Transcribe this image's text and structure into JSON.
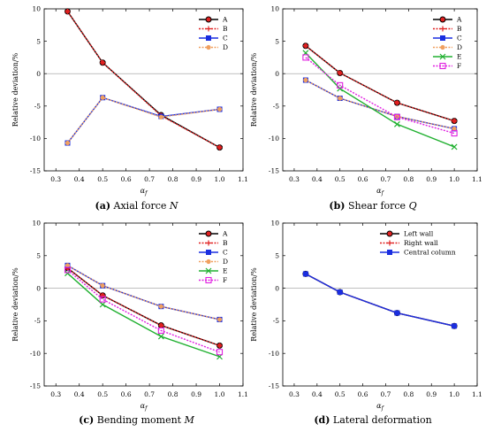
{
  "figure": {
    "panels": [
      {
        "caption_letter": "(a)",
        "caption_text": "Axial force ",
        "caption_symbol": "N"
      },
      {
        "caption_letter": "(b)",
        "caption_text": "Shear force ",
        "caption_symbol": "Q"
      },
      {
        "caption_letter": "(c)",
        "caption_text": "Bending moment ",
        "caption_symbol": "M"
      },
      {
        "caption_letter": "(d)",
        "caption_text": "Lateral deformation",
        "caption_symbol": ""
      }
    ]
  },
  "chart_data": [
    {
      "type": "line",
      "ylabel": "Relative deviation/%",
      "xlabel": "α_f",
      "xlim": [
        0.25,
        1.1
      ],
      "ylim": [
        -15,
        10
      ],
      "xticks": [
        "0.3",
        "0.4",
        "0.5",
        "0.6",
        "0.7",
        "0.8",
        "0.9",
        "1.0",
        "1.1"
      ],
      "yticks": [
        "-15",
        "-10",
        "-5",
        "0",
        "5",
        "10"
      ],
      "grid": false,
      "legend": "top-right",
      "x": [
        0.35,
        0.5,
        0.75,
        1.0
      ],
      "series": [
        {
          "name": "A",
          "color": "#000000",
          "dash": "solid",
          "marker": "circle",
          "values": [
            9.6,
            1.7,
            -6.4,
            -11.4
          ]
        },
        {
          "name": "B",
          "color": "#e02020",
          "dash": "dotted",
          "marker": "plus",
          "values": [
            9.6,
            1.7,
            -6.5,
            -11.4
          ]
        },
        {
          "name": "C",
          "color": "#1a2ee0",
          "dash": "solid",
          "marker": "xsquare",
          "values": [
            -10.7,
            -3.7,
            -6.6,
            -5.5
          ]
        },
        {
          "name": "D",
          "color": "#f0a060",
          "dash": "dotted",
          "marker": "dot",
          "values": [
            -10.7,
            -3.7,
            -6.7,
            -5.5
          ]
        }
      ]
    },
    {
      "type": "line",
      "ylabel": "Relative deviation/%",
      "xlabel": "α_f",
      "xlim": [
        0.25,
        1.1
      ],
      "ylim": [
        -15,
        10
      ],
      "xticks": [
        "0.3",
        "0.4",
        "0.5",
        "0.6",
        "0.7",
        "0.8",
        "0.9",
        "1.0",
        "1.1"
      ],
      "yticks": [
        "-15",
        "-10",
        "-5",
        "0",
        "5",
        "10"
      ],
      "grid": false,
      "legend": "top-right",
      "x": [
        0.35,
        0.5,
        0.75,
        1.0
      ],
      "series": [
        {
          "name": "A",
          "color": "#000000",
          "dash": "solid",
          "marker": "circle",
          "values": [
            4.3,
            0.1,
            -4.5,
            -7.3
          ]
        },
        {
          "name": "B",
          "color": "#e02020",
          "dash": "dotted",
          "marker": "plus",
          "values": [
            4.3,
            0.1,
            -4.5,
            -7.3
          ]
        },
        {
          "name": "C",
          "color": "#1a2ee0",
          "dash": "solid",
          "marker": "xsquare",
          "values": [
            -1.0,
            -3.8,
            -6.6,
            -8.5
          ]
        },
        {
          "name": "D",
          "color": "#f0a060",
          "dash": "dotted",
          "marker": "dot",
          "values": [
            -1.0,
            -3.8,
            -6.6,
            -8.5
          ]
        },
        {
          "name": "E",
          "color": "#20b030",
          "dash": "solid",
          "marker": "x",
          "values": [
            3.2,
            -2.3,
            -7.8,
            -11.3
          ]
        },
        {
          "name": "F",
          "color": "#e020e0",
          "dash": "dotted",
          "marker": "square",
          "values": [
            2.5,
            -1.8,
            -6.7,
            -9.2
          ]
        }
      ]
    },
    {
      "type": "line",
      "ylabel": "Relative deviation/%",
      "xlabel": "α_f",
      "xlim": [
        0.25,
        1.1
      ],
      "ylim": [
        -15,
        10
      ],
      "xticks": [
        "0.3",
        "0.4",
        "0.5",
        "0.6",
        "0.7",
        "0.8",
        "0.9",
        "1.0",
        "1.1"
      ],
      "yticks": [
        "-15",
        "-10",
        "-5",
        "0",
        "5",
        "10"
      ],
      "grid": false,
      "legend": "top-right",
      "x": [
        0.35,
        0.5,
        0.75,
        1.0
      ],
      "series": [
        {
          "name": "A",
          "color": "#000000",
          "dash": "solid",
          "marker": "circle",
          "values": [
            3.1,
            -1.1,
            -5.7,
            -8.8
          ]
        },
        {
          "name": "B",
          "color": "#e02020",
          "dash": "dotted",
          "marker": "plus",
          "values": [
            3.1,
            -1.1,
            -5.7,
            -8.8
          ]
        },
        {
          "name": "C",
          "color": "#1a2ee0",
          "dash": "solid",
          "marker": "xsquare",
          "values": [
            3.5,
            0.4,
            -2.8,
            -4.8
          ]
        },
        {
          "name": "D",
          "color": "#f0a060",
          "dash": "dotted",
          "marker": "dot",
          "values": [
            3.5,
            0.4,
            -2.8,
            -4.8
          ]
        },
        {
          "name": "E",
          "color": "#20b030",
          "dash": "solid",
          "marker": "x",
          "values": [
            2.3,
            -2.5,
            -7.4,
            -10.5
          ]
        },
        {
          "name": "F",
          "color": "#e020e0",
          "dash": "dotted",
          "marker": "square",
          "values": [
            2.8,
            -1.7,
            -6.5,
            -9.8
          ]
        }
      ]
    },
    {
      "type": "line",
      "ylabel": "Relative deviation/%",
      "xlabel": "α_f",
      "xlim": [
        0.25,
        1.1
      ],
      "ylim": [
        -15,
        10
      ],
      "xticks": [
        "0.3",
        "0.4",
        "0.5",
        "0.6",
        "0.7",
        "0.8",
        "0.9",
        "1.0",
        "1.1"
      ],
      "yticks": [
        "-15",
        "-10",
        "-5",
        "0",
        "5",
        "10"
      ],
      "grid": false,
      "legend": "top-right",
      "x": [
        0.35,
        0.5,
        0.75,
        1.0
      ],
      "series": [
        {
          "name": "Left wall",
          "color": "#000000",
          "dash": "solid",
          "marker": "circle",
          "values": [
            2.2,
            -0.6,
            -3.8,
            -5.8
          ]
        },
        {
          "name": "Right wall",
          "color": "#e02020",
          "dash": "dotted",
          "marker": "plus",
          "values": [
            2.2,
            -0.6,
            -3.8,
            -5.8
          ]
        },
        {
          "name": "Central column",
          "color": "#1a2ee0",
          "dash": "solid",
          "marker": "xsquare",
          "values": [
            2.2,
            -0.6,
            -3.8,
            -5.8
          ]
        }
      ]
    }
  ]
}
